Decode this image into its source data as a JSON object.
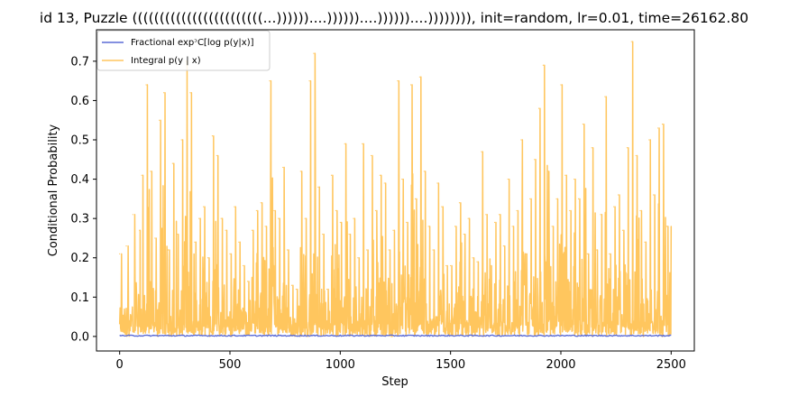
{
  "chart_data": {
    "type": "line",
    "title": "id 13, Puzzle ((((((((((((((((((((((((...))))))....))))))....))))))....)))))))), init=random, lr=0.01, time=26162.80",
    "xlabel": "Step",
    "ylabel": "Conditional Probability",
    "xlim": [
      -105,
      2605
    ],
    "ylim": [
      -0.037,
      0.78
    ],
    "xticks": [
      0,
      500,
      1000,
      1500,
      2000,
      2500
    ],
    "yticks": [
      0.0,
      0.1,
      0.2,
      0.3,
      0.4,
      0.5,
      0.6,
      0.7
    ],
    "ytick_labels": [
      "0.0",
      "0.1",
      "0.2",
      "0.3",
      "0.4",
      "0.5",
      "0.6",
      "0.7"
    ],
    "grid": false,
    "legend_position": "upper-left",
    "series": [
      {
        "name": "Fractional expᵓC[log p(y|x)]",
        "color": "#5b6cd6",
        "x": [
          0,
          2500
        ],
        "y": [
          0.002,
          0.002
        ]
      },
      {
        "name": "Integral p(y | x)",
        "color": "#ffc65e",
        "x": [
          0,
          30,
          60,
          90,
          100,
          120,
          140,
          160,
          180,
          200,
          220,
          240,
          260,
          280,
          300,
          320,
          340,
          360,
          380,
          400,
          420,
          440,
          460,
          480,
          500,
          520,
          540,
          560,
          580,
          600,
          620,
          640,
          660,
          680,
          700,
          720,
          740,
          760,
          780,
          800,
          820,
          840,
          860,
          880,
          900,
          920,
          940,
          960,
          980,
          1000,
          1020,
          1040,
          1060,
          1080,
          1100,
          1120,
          1140,
          1160,
          1180,
          1200,
          1220,
          1240,
          1260,
          1280,
          1300,
          1320,
          1340,
          1360,
          1380,
          1400,
          1420,
          1440,
          1460,
          1480,
          1500,
          1520,
          1540,
          1560,
          1580,
          1600,
          1620,
          1640,
          1660,
          1680,
          1700,
          1720,
          1740,
          1760,
          1780,
          1800,
          1820,
          1840,
          1860,
          1880,
          1900,
          1920,
          1940,
          1960,
          1980,
          2000,
          2020,
          2040,
          2060,
          2080,
          2100,
          2120,
          2140,
          2160,
          2180,
          2200,
          2220,
          2240,
          2260,
          2280,
          2300,
          2320,
          2340,
          2360,
          2380,
          2400,
          2420,
          2440,
          2460,
          2480,
          2500
        ],
        "y": [
          0.21,
          0.23,
          0.31,
          0.27,
          0.41,
          0.64,
          0.42,
          0.25,
          0.55,
          0.62,
          0.22,
          0.44,
          0.26,
          0.5,
          0.7,
          0.62,
          0.24,
          0.3,
          0.33,
          0.2,
          0.51,
          0.46,
          0.3,
          0.27,
          0.21,
          0.33,
          0.24,
          0.18,
          0.14,
          0.27,
          0.32,
          0.34,
          0.28,
          0.65,
          0.32,
          0.3,
          0.43,
          0.22,
          0.13,
          0.12,
          0.42,
          0.3,
          0.65,
          0.72,
          0.38,
          0.26,
          0.12,
          0.41,
          0.32,
          0.29,
          0.49,
          0.26,
          0.3,
          0.2,
          0.49,
          0.22,
          0.46,
          0.32,
          0.41,
          0.39,
          0.22,
          0.27,
          0.65,
          0.4,
          0.29,
          0.64,
          0.35,
          0.66,
          0.42,
          0.28,
          0.22,
          0.39,
          0.33,
          0.18,
          0.18,
          0.28,
          0.34,
          0.26,
          0.3,
          0.2,
          0.19,
          0.47,
          0.31,
          0.18,
          0.29,
          0.31,
          0.23,
          0.4,
          0.28,
          0.32,
          0.5,
          0.21,
          0.35,
          0.45,
          0.58,
          0.69,
          0.42,
          0.28,
          0.35,
          0.64,
          0.41,
          0.32,
          0.4,
          0.35,
          0.54,
          0.21,
          0.48,
          0.22,
          0.31,
          0.61,
          0.21,
          0.33,
          0.36,
          0.27,
          0.48,
          0.75,
          0.46,
          0.32,
          0.24,
          0.5,
          0.36,
          0.53,
          0.54,
          0.28,
          0.28
        ]
      }
    ]
  }
}
